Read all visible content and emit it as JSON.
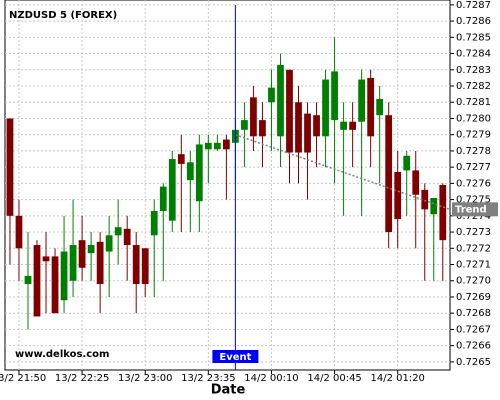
{
  "chart_data": {
    "type": "candlestick",
    "title": "NZDUSD 5 (FOREX)",
    "watermark": "www.delkos.com",
    "x_label": "Date",
    "up_color": "#008000",
    "down_color": "#800000",
    "grid": true,
    "xlim": [
      -0.55,
      48.8
    ],
    "xticks": [
      {
        "value": 1,
        "label": "13/2 21:50"
      },
      {
        "value": 8,
        "label": "13/2 22:25"
      },
      {
        "value": 15,
        "label": "13/2 23:00"
      },
      {
        "value": 22,
        "label": "13/2 23:35"
      },
      {
        "value": 29,
        "label": "14/2 00:10"
      },
      {
        "value": 36,
        "label": "14/2 00:45"
      },
      {
        "value": 43,
        "label": "14/2 01:20"
      }
    ],
    "ylim": [
      0.72645,
      0.72873
    ],
    "yticks": [
      0.7265,
      0.7266,
      0.7267,
      0.7268,
      0.7269,
      {
        "value": 0.727,
        "label": "0.7270"
      },
      0.7271,
      0.7272,
      0.7273,
      0.7274,
      0.7275,
      0.7276,
      0.7277,
      0.7278,
      0.7279,
      {
        "value": 0.728,
        "label": "0.7280"
      },
      0.7281,
      0.7282,
      0.7283,
      0.7284,
      0.7285,
      0.7286,
      0.7287
    ],
    "x": [
      0,
      1,
      2,
      3,
      4,
      5,
      6,
      7,
      8,
      9,
      10,
      11,
      12,
      13,
      14,
      15,
      16,
      17,
      18,
      19,
      20,
      21,
      22,
      23,
      24,
      25,
      26,
      27,
      28,
      29,
      30,
      31,
      32,
      33,
      34,
      35,
      36,
      37,
      38,
      39,
      40,
      41,
      42,
      43,
      44,
      45,
      46,
      47,
      48
    ],
    "open": [
      0.728,
      0.7274,
      0.72698,
      0.72722,
      0.72715,
      0.72715,
      0.72688,
      0.727,
      0.72725,
      0.72717,
      0.72724,
      0.72718,
      0.72728,
      0.72732,
      0.72722,
      0.7272,
      0.72728,
      0.72743,
      0.72737,
      0.72778,
      0.72762,
      0.72749,
      0.72781,
      0.72781,
      0.72787,
      0.72785,
      0.72793,
      0.72813,
      0.72799,
      0.7281,
      0.72789,
      0.7283,
      0.7281,
      0.72803,
      0.72802,
      0.72789,
      0.72799,
      0.72793,
      0.72798,
      0.72798,
      0.72825,
      0.72802,
      0.72802,
      0.72767,
      0.72768,
      0.72768,
      0.72756,
      0.72741,
      0.72759
    ],
    "high": [
      0.728,
      0.7275,
      0.7273,
      0.72725,
      0.7273,
      0.7272,
      0.7274,
      0.7275,
      0.7274,
      0.7273,
      0.7273,
      0.7274,
      0.7275,
      0.7274,
      0.7273,
      0.7272,
      0.7275,
      0.7276,
      0.7278,
      0.7279,
      0.7278,
      0.7279,
      0.7279,
      0.7279,
      0.7279,
      0.728,
      0.7281,
      0.7282,
      0.7281,
      0.7283,
      0.7284,
      0.7283,
      0.7282,
      0.7281,
      0.7281,
      0.7283,
      0.7285,
      0.7281,
      0.7281,
      0.7283,
      0.7283,
      0.7282,
      0.7281,
      0.7278,
      0.7278,
      0.7278,
      0.7276,
      0.7275,
      0.7276
    ],
    "low": [
      0.7271,
      0.727,
      0.7267,
      0.72678,
      0.7268,
      0.7268,
      0.7268,
      0.7269,
      0.727,
      0.727,
      0.7268,
      0.7269,
      0.7271,
      0.727,
      0.7268,
      0.7269,
      0.7269,
      0.727,
      0.7273,
      0.7273,
      0.7273,
      0.7273,
      0.7276,
      0.7278,
      0.7275,
      0.7276,
      0.7277,
      0.7278,
      0.7277,
      0.7278,
      0.7277,
      0.7276,
      0.7276,
      0.7275,
      0.7277,
      0.7277,
      0.7276,
      0.7274,
      0.7277,
      0.7274,
      0.7277,
      0.7276,
      0.7272,
      0.7272,
      0.7274,
      0.7272,
      0.727,
      0.727,
      0.727
    ],
    "close": [
      0.7274,
      0.7272,
      0.72703,
      0.72678,
      0.72712,
      0.7268,
      0.72718,
      0.72722,
      0.72708,
      0.72722,
      0.72698,
      0.72728,
      0.72733,
      0.72722,
      0.72698,
      0.72698,
      0.72743,
      0.72758,
      0.72775,
      0.72772,
      0.72773,
      0.72784,
      0.72785,
      0.72785,
      0.72781,
      0.72793,
      0.72799,
      0.72789,
      0.72789,
      0.72819,
      0.72833,
      0.72779,
      0.72779,
      0.72779,
      0.72789,
      0.72824,
      0.72829,
      0.72798,
      0.72793,
      0.72824,
      0.72789,
      0.72812,
      0.7273,
      0.72738,
      0.72777,
      0.72753,
      0.72744,
      0.72751,
      0.72725
    ],
    "event": {
      "label": "Event",
      "x": 25,
      "color": "#0000ff"
    },
    "trend": {
      "label": "Trend",
      "x": [
        25,
        48.8
      ],
      "y": [
        0.7279,
        0.72744
      ],
      "color": "#808080"
    }
  }
}
